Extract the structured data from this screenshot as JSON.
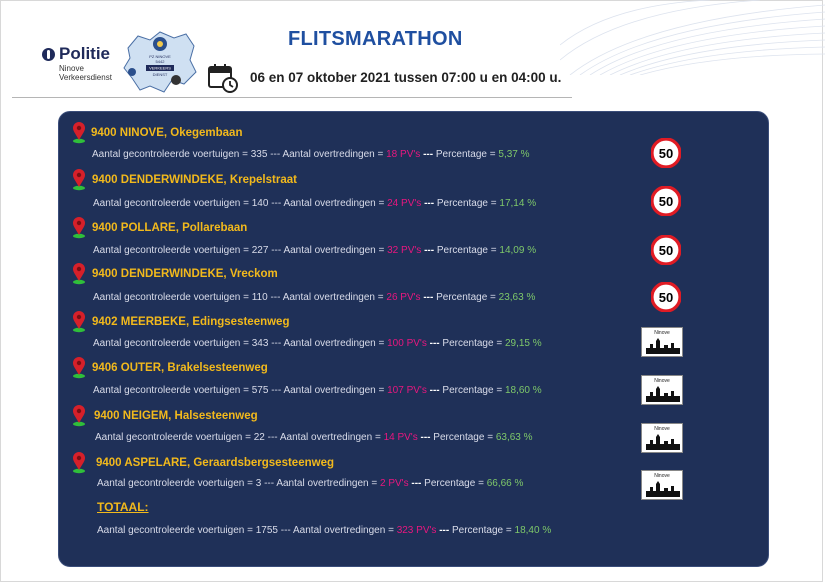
{
  "header": {
    "logo_name": "Politie",
    "logo_sub1": "Ninove",
    "logo_sub2": "Verkeersdienst",
    "badge_text": [
      "PZ NINOVE",
      "5442",
      "VERKEERS",
      "DIENST"
    ],
    "title": "FLITSMARATHON",
    "date_line": "06 en 07 oktober 2021 tussen 07:00 u en 04:00 u."
  },
  "label_controlled": "Aantal gecontroleerde voertuigen = ",
  "label_violations": "Aantal overtredingen = ",
  "label_percentage": "Percentage = ",
  "sep": "---",
  "rows": [
    {
      "location": "9400 NINOVE, Okegembaan",
      "controlled": "335",
      "violations": "18 PV's",
      "percentage": "5,37 %",
      "sign": "50"
    },
    {
      "location": "9400 DENDERWINDEKE, Krepelstraat",
      "controlled": "140",
      "violations": "24 PV's",
      "percentage": "17,14 %",
      "sign": "50"
    },
    {
      "location": "9400 POLLARE, Pollarebaan",
      "controlled": "227",
      "violations": "32 PV's",
      "percentage": "14,09 %",
      "sign": "50"
    },
    {
      "location": "9400 DENDERWINDEKE, Vreckom",
      "controlled": "110",
      "violations": "26 PV's",
      "percentage": "23,63 %",
      "sign": "50"
    },
    {
      "location": "9402 MEERBEKE, Edingsesteenweg",
      "controlled": "343",
      "violations": "100 PV's",
      "percentage": "29,15 %",
      "sign": "Ninove"
    },
    {
      "location": "9406 OUTER, Brakelsesteenweg",
      "controlled": "575",
      "violations": "107 PV's",
      "percentage": "18,60 %",
      "sign": "Ninove"
    },
    {
      "location": "9400 NEIGEM, Halsesteenweg",
      "controlled": "22",
      "violations": "14 PV's",
      "percentage": "63,63 %",
      "sign": "Ninove"
    },
    {
      "location": "9400 ASPELARE, Geraardsbergsesteenweg",
      "controlled": "3",
      "violations": "2 PV's",
      "percentage": "66,66 %",
      "sign": "Ninove"
    }
  ],
  "total": {
    "label": "TOTAAL:",
    "controlled": "1755",
    "violations": "323 PV's",
    "percentage": "18,40 %"
  },
  "colors": {
    "panel": "#1f3058",
    "location": "#f2b91c",
    "violations": "#e8177f",
    "percentage": "#7ec86a",
    "title": "#1f4fa0"
  }
}
